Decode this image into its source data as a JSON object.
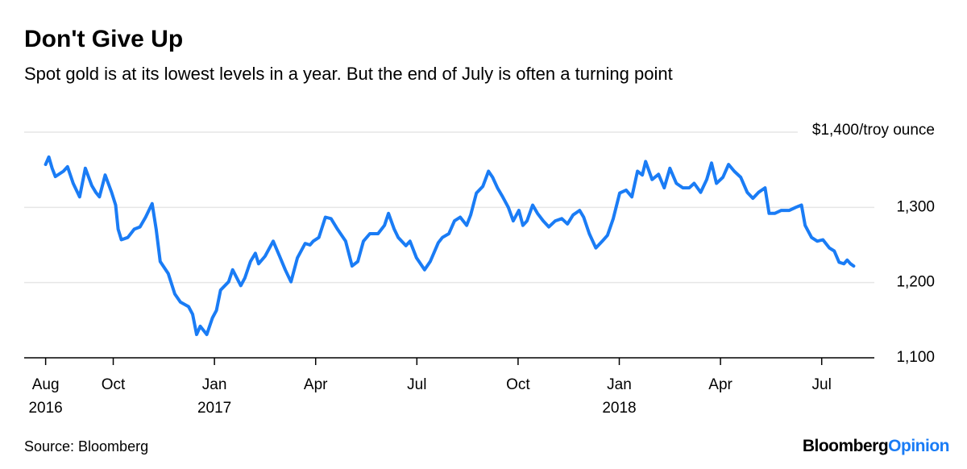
{
  "chart_data": {
    "type": "line",
    "title": "Don't Give Up",
    "subtitle": "Spot gold is at its lowest levels in a year. But the end of July is often a turning point",
    "source": "Source: Bloomberg",
    "logo": [
      "Bloomberg",
      "Opinion"
    ],
    "xlim": [
      2016.53,
      2018.63
    ],
    "xticks": [
      {
        "value": 2016.583,
        "label": "Aug",
        "year": "2016"
      },
      {
        "value": 2016.75,
        "label": "Oct"
      },
      {
        "value": 2017,
        "label": "Jan",
        "year": "2017"
      },
      {
        "value": 2017.25,
        "label": "Apr"
      },
      {
        "value": 2017.5,
        "label": "Jul"
      },
      {
        "value": 2017.75,
        "label": "Oct"
      },
      {
        "value": 2018,
        "label": "Jan",
        "year": "2018"
      },
      {
        "value": 2018.25,
        "label": "Apr"
      },
      {
        "value": 2018.5,
        "label": "Jul"
      }
    ],
    "ylim": [
      1100,
      1400
    ],
    "yticks": [
      {
        "value": 1100,
        "label": "1,100"
      },
      {
        "value": 1200,
        "label": "1,200"
      },
      {
        "value": 1300,
        "label": "1,300"
      },
      {
        "value": 1400,
        "label": "$1,400/troy ounce"
      }
    ],
    "grid": true,
    "x": [
      2016.583,
      2016.591,
      2016.599,
      2016.607,
      2016.627,
      2016.637,
      2016.651,
      2016.667,
      2016.681,
      2016.697,
      2016.707,
      2016.716,
      2016.73,
      2016.746,
      2016.756,
      2016.762,
      2016.77,
      2016.786,
      2016.802,
      2016.816,
      2016.83,
      2016.846,
      2016.856,
      2016.866,
      2016.886,
      2016.902,
      2016.916,
      2016.936,
      2016.946,
      2016.956,
      2016.965,
      2016.981,
      2016.995,
      2017.005,
      2017.015,
      2017.035,
      2017.045,
      2017.065,
      2017.075,
      2017.089,
      2017.101,
      2017.109,
      2017.125,
      2017.145,
      2017.161,
      2017.175,
      2017.189,
      2017.205,
      2017.224,
      2017.236,
      2017.244,
      2017.258,
      2017.274,
      2017.288,
      2017.304,
      2017.324,
      2017.34,
      2017.354,
      2017.368,
      2017.384,
      2017.404,
      2017.42,
      2017.43,
      2017.444,
      2017.454,
      2017.473,
      2017.483,
      2017.499,
      2017.519,
      2017.533,
      2017.553,
      2017.563,
      2017.579,
      2017.593,
      2017.607,
      2017.623,
      2017.633,
      2017.647,
      2017.663,
      2017.677,
      2017.687,
      2017.699,
      2017.712,
      2017.726,
      2017.738,
      2017.752,
      2017.762,
      2017.772,
      2017.786,
      2017.798,
      2017.812,
      2017.826,
      2017.842,
      2017.858,
      2017.872,
      2017.886,
      2017.902,
      2017.912,
      2017.926,
      2017.942,
      2017.958,
      2017.971,
      2017.985,
      2018.001,
      2018.017,
      2018.031,
      2018.045,
      2018.057,
      2018.065,
      2018.081,
      2018.097,
      2018.111,
      2018.125,
      2018.141,
      2018.157,
      2018.173,
      2018.185,
      2018.201,
      2018.216,
      2018.228,
      2018.24,
      2018.256,
      2018.27,
      2018.284,
      2018.3,
      2018.316,
      2018.33,
      2018.344,
      2018.36,
      2018.37,
      2018.384,
      2018.4,
      2018.42,
      2018.436,
      2018.45,
      2018.459,
      2018.475,
      2018.489,
      2018.503,
      2018.519,
      2018.531,
      2018.543,
      2018.555,
      2018.563,
      2018.571,
      2018.579
    ],
    "series": [
      {
        "name": "Spot gold",
        "color": "#1a7cf5",
        "values": [
          1357,
          1367,
          1352,
          1341,
          1348,
          1354,
          1332,
          1314,
          1352,
          1329,
          1320,
          1314,
          1343,
          1320,
          1303,
          1271,
          1257,
          1260,
          1271,
          1274,
          1287,
          1305,
          1271,
          1228,
          1212,
          1185,
          1174,
          1168,
          1158,
          1131,
          1142,
          1131,
          1153,
          1163,
          1190,
          1201,
          1217,
          1196,
          1206,
          1228,
          1239,
          1225,
          1235,
          1255,
          1235,
          1217,
          1201,
          1233,
          1252,
          1250,
          1255,
          1260,
          1287,
          1285,
          1271,
          1255,
          1222,
          1228,
          1255,
          1265,
          1265,
          1276,
          1292,
          1271,
          1260,
          1249,
          1255,
          1233,
          1217,
          1228,
          1253,
          1260,
          1265,
          1282,
          1287,
          1276,
          1290,
          1319,
          1328,
          1348,
          1340,
          1326,
          1314,
          1300,
          1282,
          1296,
          1276,
          1282,
          1303,
          1292,
          1282,
          1274,
          1282,
          1285,
          1278,
          1290,
          1296,
          1287,
          1265,
          1246,
          1255,
          1263,
          1285,
          1319,
          1323,
          1314,
          1348,
          1343,
          1361,
          1337,
          1344,
          1326,
          1352,
          1332,
          1326,
          1326,
          1332,
          1320,
          1337,
          1359,
          1332,
          1340,
          1357,
          1348,
          1340,
          1320,
          1312,
          1320,
          1326,
          1292,
          1292,
          1296,
          1296,
          1300,
          1303,
          1276,
          1260,
          1255,
          1257,
          1246,
          1242,
          1227,
          1225,
          1230,
          1225,
          1222
        ]
      }
    ]
  }
}
